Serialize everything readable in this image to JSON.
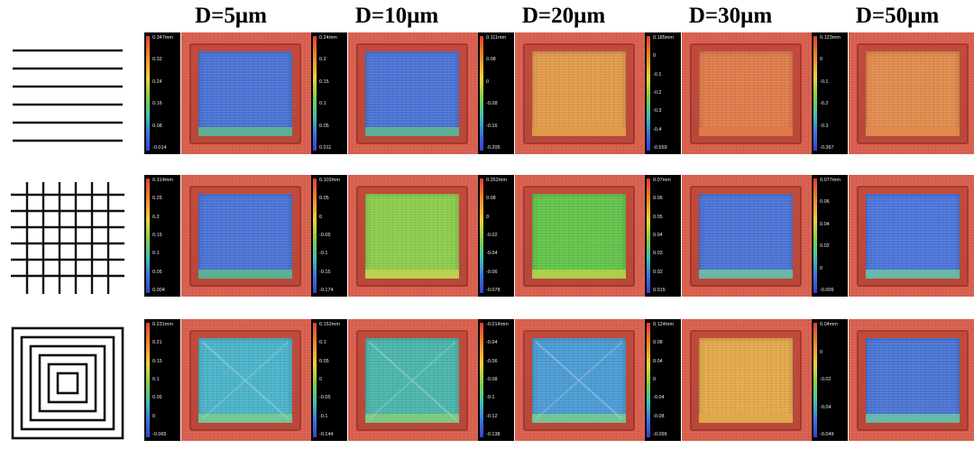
{
  "columns": [
    {
      "label": "D=5μm"
    },
    {
      "label": "D=10μm"
    },
    {
      "label": "D=20μm"
    },
    {
      "label": "D=30μm"
    },
    {
      "label": "D=50μm"
    }
  ],
  "rows": [
    {
      "pattern": "parallel-lines-pattern",
      "tiles": [
        {
          "ticks": [
            "0.347mm",
            "0.32",
            "0.24",
            "0.16",
            "0.08",
            "-0.014"
          ],
          "fill": "#4a72d4",
          "bottomband": "#5fbb8a"
        },
        {
          "ticks": [
            "0.24mm",
            "0.2",
            "0.15",
            "0.1",
            "0.05",
            "0.011"
          ],
          "fill": "#4a72d4",
          "bottomband": "#5fbb8a"
        },
        {
          "ticks": [
            "0.111mm",
            "0.08",
            "0",
            "-0.08",
            "-0.16",
            "-0.205"
          ],
          "fill": "#e09a4a",
          "bottomband": "#e09a4a"
        },
        {
          "ticks": [
            "0.185mm",
            "0",
            "-0.1",
            "-0.2",
            "-0.3",
            "-0.4",
            "-0.559"
          ],
          "fill": "#de7a4a",
          "bottomband": "#de7a4a"
        },
        {
          "ticks": [
            "0.123mm",
            "0",
            "-0.1",
            "-0.2",
            "-0.3",
            "-0.367"
          ],
          "fill": "#e08a4c",
          "bottomband": "#e08a4c"
        }
      ]
    },
    {
      "pattern": "grid-pattern",
      "tiles": [
        {
          "ticks": [
            "0.314mm",
            "0.25",
            "0.2",
            "0.15",
            "0.1",
            "0.05",
            "0.004"
          ],
          "fill": "#4a72d4",
          "bottomband": "#5fbb8a"
        },
        {
          "ticks": [
            "0.102mm",
            "0.05",
            "0",
            "-0.05",
            "-0.1",
            "-0.15",
            "-0.174"
          ],
          "fill": "#8acb4c",
          "bottomband": "#c7d24a"
        },
        {
          "ticks": [
            "0.252mm",
            "0.08",
            "0",
            "-0.02",
            "-0.04",
            "-0.06",
            "-0.078"
          ],
          "fill": "#62c24a",
          "bottomband": "#b8d24a"
        },
        {
          "ticks": [
            "0.07mm",
            "0.06",
            "0.05",
            "0.04",
            "0.03",
            "0.02",
            "0.015"
          ],
          "fill": "#4a72d4",
          "bottomband": "#6fc4a0"
        },
        {
          "ticks": [
            "0.077mm",
            "0.06",
            "0.04",
            "0.02",
            "0",
            "-0.009"
          ],
          "fill": "#4a74d8",
          "bottomband": "#6fc4a0"
        }
      ]
    },
    {
      "pattern": "concentric-squares-pattern",
      "tiles": [
        {
          "ticks": [
            "0.231mm",
            "0.21",
            "0.15",
            "0.1",
            "0.05",
            "0",
            "-0.065"
          ],
          "fill": "#4ab2c8",
          "bottomband": "#7acb8a"
        },
        {
          "ticks": [
            "0.152mm",
            "0.1",
            "0.05",
            "0",
            "-0.05",
            "-0.1",
            "-0.144"
          ],
          "fill": "#4ab4a8",
          "bottomband": "#8acb7a"
        },
        {
          "ticks": [
            "-0.014mm",
            "-0.04",
            "-0.06",
            "-0.08",
            "-0.1",
            "-0.12",
            "-0.138"
          ],
          "fill": "#4a9ad2",
          "bottomband": "#7acb8a"
        },
        {
          "ticks": [
            "0.124mm",
            "0.08",
            "0.04",
            "0",
            "-0.04",
            "-0.08",
            "-0.099"
          ],
          "fill": "#e2a84a",
          "bottomband": "#e2a84a"
        },
        {
          "ticks": [
            "0.04mm",
            "0",
            "-0.02",
            "-0.04",
            "-0.049"
          ],
          "fill": "#4a74d4",
          "bottomband": "#6fc4a0"
        }
      ]
    }
  ]
}
